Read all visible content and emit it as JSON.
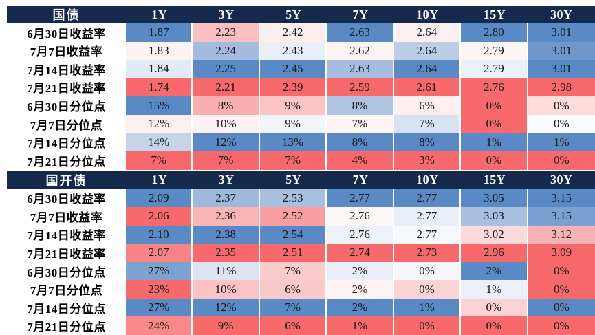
{
  "palette": {
    "header_bg": "#15294D",
    "header_text": "#FFFFFF",
    "scale_low": "#F8696B",
    "scale_mid": "#FCFCFF",
    "scale_high": "#5A8AC6"
  },
  "columns": [
    "1Y",
    "3Y",
    "5Y",
    "7Y",
    "10Y",
    "15Y",
    "30Y"
  ],
  "sections": [
    {
      "title": "国债",
      "rows": [
        {
          "label": "6月30日收益率",
          "cells": [
            {
              "v": "1.87",
              "c": "#5A8AC6"
            },
            {
              "v": "2.23",
              "c": "#FABFC0"
            },
            {
              "v": "2.42",
              "c": "#FDEDED"
            },
            {
              "v": "2.63",
              "c": "#5A8AC6"
            },
            {
              "v": "2.64",
              "c": "#FDEFF0"
            },
            {
              "v": "2.80",
              "c": "#5A8AC6"
            },
            {
              "v": "3.01",
              "c": "#5A8AC6"
            }
          ]
        },
        {
          "label": "7月7日收益率",
          "cells": [
            {
              "v": "1.83",
              "c": "#FDF2F2"
            },
            {
              "v": "2.24",
              "c": "#A3BBDE"
            },
            {
              "v": "2.43",
              "c": "#E9EEF7"
            },
            {
              "v": "2.62",
              "c": "#FDF3F3"
            },
            {
              "v": "2.64",
              "c": "#BCCDE6"
            },
            {
              "v": "2.79",
              "c": "#FDF5F5"
            },
            {
              "v": "3.01",
              "c": "#6F97CC"
            }
          ]
        },
        {
          "label": "7月14日收益率",
          "cells": [
            {
              "v": "1.84",
              "c": "#E2EAF5"
            },
            {
              "v": "2.25",
              "c": "#5A8AC6"
            },
            {
              "v": "2.45",
              "c": "#5A8AC6"
            },
            {
              "v": "2.63",
              "c": "#A6BDDF"
            },
            {
              "v": "2.64",
              "c": "#5A8AC6"
            },
            {
              "v": "2.79",
              "c": "#EBF0F8"
            },
            {
              "v": "3.01",
              "c": "#5A8AC6"
            }
          ]
        },
        {
          "label": "7月21日收益率",
          "cells": [
            {
              "v": "1.74",
              "c": "#F8696B"
            },
            {
              "v": "2.21",
              "c": "#F8696B"
            },
            {
              "v": "2.39",
              "c": "#F8696B"
            },
            {
              "v": "2.59",
              "c": "#F8696B"
            },
            {
              "v": "2.61",
              "c": "#F8696B"
            },
            {
              "v": "2.76",
              "c": "#F8696B"
            },
            {
              "v": "2.98",
              "c": "#F8696B"
            }
          ]
        },
        {
          "label": "6月30日分位点",
          "cells": [
            {
              "v": "15%",
              "c": "#5A8AC6"
            },
            {
              "v": "8%",
              "c": "#F9AFB1"
            },
            {
              "v": "9%",
              "c": "#FBC5C6"
            },
            {
              "v": "8%",
              "c": "#AFC4E1"
            },
            {
              "v": "6%",
              "c": "#FDEFEF"
            },
            {
              "v": "0%",
              "c": "#F8696B"
            },
            {
              "v": "0%",
              "c": "#FBDBDC"
            }
          ]
        },
        {
          "label": "7月7日分位点",
          "cells": [
            {
              "v": "12%",
              "c": "#FDEFF0"
            },
            {
              "v": "10%",
              "c": "#FDF1F1"
            },
            {
              "v": "9%",
              "c": "#F2F5FA"
            },
            {
              "v": "7%",
              "c": "#FDF4F4"
            },
            {
              "v": "7%",
              "c": "#D8E2F1"
            },
            {
              "v": "0%",
              "c": "#F8696B"
            },
            {
              "v": "0%",
              "c": "#FBFCFE"
            }
          ]
        },
        {
          "label": "7月14日分位点",
          "cells": [
            {
              "v": "14%",
              "c": "#C5D4E9"
            },
            {
              "v": "12%",
              "c": "#5A8AC6"
            },
            {
              "v": "13%",
              "c": "#5A8AC6"
            },
            {
              "v": "8%",
              "c": "#5A8AC6"
            },
            {
              "v": "8%",
              "c": "#5A8AC6"
            },
            {
              "v": "1%",
              "c": "#5A8AC6"
            },
            {
              "v": "1%",
              "c": "#5A8AC6"
            }
          ]
        },
        {
          "label": "7月21日分位点",
          "cells": [
            {
              "v": "7%",
              "c": "#F8696B"
            },
            {
              "v": "7%",
              "c": "#F8696B"
            },
            {
              "v": "7%",
              "c": "#F8696B"
            },
            {
              "v": "4%",
              "c": "#F8696B"
            },
            {
              "v": "3%",
              "c": "#F8696B"
            },
            {
              "v": "0%",
              "c": "#F8696B"
            },
            {
              "v": "0%",
              "c": "#F8696B"
            }
          ]
        }
      ]
    },
    {
      "title": "国开债",
      "rows": [
        {
          "label": "6月30日收益率",
          "cells": [
            {
              "v": "2.09",
              "c": "#5A8AC6"
            },
            {
              "v": "2.37",
              "c": "#9FB8DC"
            },
            {
              "v": "2.53",
              "c": "#A9BFDF"
            },
            {
              "v": "2.77",
              "c": "#5A8AC6"
            },
            {
              "v": "2.77",
              "c": "#5A8AC6"
            },
            {
              "v": "3.05",
              "c": "#5A8AC6"
            },
            {
              "v": "3.15",
              "c": "#5A8AC6"
            }
          ]
        },
        {
          "label": "7月7日收益率",
          "cells": [
            {
              "v": "2.06",
              "c": "#F8696B"
            },
            {
              "v": "2.36",
              "c": "#FAB5B7"
            },
            {
              "v": "2.52",
              "c": "#FA9FA1"
            },
            {
              "v": "2.76",
              "c": "#FDF6F6"
            },
            {
              "v": "2.77",
              "c": "#E9EEF7"
            },
            {
              "v": "3.03",
              "c": "#A9BFDF"
            },
            {
              "v": "3.15",
              "c": "#7BA0D2"
            }
          ]
        },
        {
          "label": "7月14日收益率",
          "cells": [
            {
              "v": "2.10",
              "c": "#5A8AC6"
            },
            {
              "v": "2.38",
              "c": "#5A8AC6"
            },
            {
              "v": "2.54",
              "c": "#5A8AC6"
            },
            {
              "v": "2.76",
              "c": "#EDF1F9"
            },
            {
              "v": "2.77",
              "c": "#F6F8FC"
            },
            {
              "v": "3.02",
              "c": "#FBDADB"
            },
            {
              "v": "3.12",
              "c": "#FAB3B5"
            }
          ]
        },
        {
          "label": "7月21日收益率",
          "cells": [
            {
              "v": "2.07",
              "c": "#F98486"
            },
            {
              "v": "2.35",
              "c": "#F8696B"
            },
            {
              "v": "2.51",
              "c": "#F8696B"
            },
            {
              "v": "2.74",
              "c": "#F8696B"
            },
            {
              "v": "2.73",
              "c": "#F8696B"
            },
            {
              "v": "2.96",
              "c": "#F8696B"
            },
            {
              "v": "3.09",
              "c": "#F8696B"
            }
          ]
        },
        {
          "label": "6月30日分位点",
          "cells": [
            {
              "v": "27%",
              "c": "#7CA2D2"
            },
            {
              "v": "11%",
              "c": "#DCE4F2"
            },
            {
              "v": "7%",
              "c": "#FACBCC"
            },
            {
              "v": "2%",
              "c": "#E9EEF7"
            },
            {
              "v": "0%",
              "c": "#F5F7FB"
            },
            {
              "v": "2%",
              "c": "#5A8AC6"
            },
            {
              "v": "0%",
              "c": "#F8696B"
            }
          ]
        },
        {
          "label": "7月7日分位点",
          "cells": [
            {
              "v": "23%",
              "c": "#F8696B"
            },
            {
              "v": "10%",
              "c": "#FBC3C4"
            },
            {
              "v": "6%",
              "c": "#FBC9CA"
            },
            {
              "v": "2%",
              "c": "#FDF3F3"
            },
            {
              "v": "0%",
              "c": "#FBD5D6"
            },
            {
              "v": "1%",
              "c": "#EBF0F8"
            },
            {
              "v": "0%",
              "c": "#F8696B"
            }
          ]
        },
        {
          "label": "7月14日分位点",
          "cells": [
            {
              "v": "27%",
              "c": "#5A8AC6"
            },
            {
              "v": "12%",
              "c": "#5A8AC6"
            },
            {
              "v": "7%",
              "c": "#5A8AC6"
            },
            {
              "v": "2%",
              "c": "#5A8AC6"
            },
            {
              "v": "1%",
              "c": "#5A8AC6"
            },
            {
              "v": "0%",
              "c": "#FAD2D3"
            },
            {
              "v": "0%",
              "c": "#5A8AC6"
            }
          ]
        },
        {
          "label": "7月21日分位点",
          "cells": [
            {
              "v": "24%",
              "c": "#F9888A"
            },
            {
              "v": "9%",
              "c": "#F8696B"
            },
            {
              "v": "6%",
              "c": "#F8696B"
            },
            {
              "v": "1%",
              "c": "#F8696B"
            },
            {
              "v": "0%",
              "c": "#F8696B"
            },
            {
              "v": "0%",
              "c": "#F8696B"
            },
            {
              "v": "0%",
              "c": "#F8696B"
            }
          ]
        }
      ]
    }
  ],
  "chart_data": [
    {
      "type": "heatmap",
      "title": "国债",
      "columns": [
        "1Y",
        "3Y",
        "5Y",
        "7Y",
        "10Y",
        "15Y",
        "30Y"
      ],
      "rows": [
        {
          "label": "6月30日收益率",
          "values": [
            1.87,
            2.23,
            2.42,
            2.63,
            2.64,
            2.8,
            3.01
          ]
        },
        {
          "label": "7月7日收益率",
          "values": [
            1.83,
            2.24,
            2.43,
            2.62,
            2.64,
            2.79,
            3.01
          ]
        },
        {
          "label": "7月14日收益率",
          "values": [
            1.84,
            2.25,
            2.45,
            2.63,
            2.64,
            2.79,
            3.01
          ]
        },
        {
          "label": "7月21日收益率",
          "values": [
            1.74,
            2.21,
            2.39,
            2.59,
            2.61,
            2.76,
            2.98
          ]
        },
        {
          "label": "6月30日分位点",
          "values": [
            "15%",
            "8%",
            "9%",
            "8%",
            "6%",
            "0%",
            "0%"
          ]
        },
        {
          "label": "7月7日分位点",
          "values": [
            "12%",
            "10%",
            "9%",
            "7%",
            "7%",
            "0%",
            "0%"
          ]
        },
        {
          "label": "7月14日分位点",
          "values": [
            "14%",
            "12%",
            "13%",
            "8%",
            "8%",
            "1%",
            "1%"
          ]
        },
        {
          "label": "7月21日分位点",
          "values": [
            "7%",
            "7%",
            "7%",
            "4%",
            "3%",
            "0%",
            "0%"
          ]
        }
      ],
      "color_scale": {
        "low": "#F8696B",
        "mid": "#FCFCFF",
        "high": "#5A8AC6"
      }
    },
    {
      "type": "heatmap",
      "title": "国开债",
      "columns": [
        "1Y",
        "3Y",
        "5Y",
        "7Y",
        "10Y",
        "15Y",
        "30Y"
      ],
      "rows": [
        {
          "label": "6月30日收益率",
          "values": [
            2.09,
            2.37,
            2.53,
            2.77,
            2.77,
            3.05,
            3.15
          ]
        },
        {
          "label": "7月7日收益率",
          "values": [
            2.06,
            2.36,
            2.52,
            2.76,
            2.77,
            3.03,
            3.15
          ]
        },
        {
          "label": "7月14日收益率",
          "values": [
            2.1,
            2.38,
            2.54,
            2.76,
            2.77,
            3.02,
            3.12
          ]
        },
        {
          "label": "7月21日收益率",
          "values": [
            2.07,
            2.35,
            2.51,
            2.74,
            2.73,
            2.96,
            3.09
          ]
        },
        {
          "label": "6月30日分位点",
          "values": [
            "27%",
            "11%",
            "7%",
            "2%",
            "0%",
            "2%",
            "0%"
          ]
        },
        {
          "label": "7月7日分位点",
          "values": [
            "23%",
            "10%",
            "6%",
            "2%",
            "0%",
            "1%",
            "0%"
          ]
        },
        {
          "label": "7月14日分位点",
          "values": [
            "27%",
            "12%",
            "7%",
            "2%",
            "1%",
            "0%",
            "0%"
          ]
        },
        {
          "label": "7月21日分位点",
          "values": [
            "24%",
            "9%",
            "6%",
            "1%",
            "0%",
            "0%",
            "0%"
          ]
        }
      ],
      "color_scale": {
        "low": "#F8696B",
        "mid": "#FCFCFF",
        "high": "#5A8AC6"
      }
    }
  ]
}
